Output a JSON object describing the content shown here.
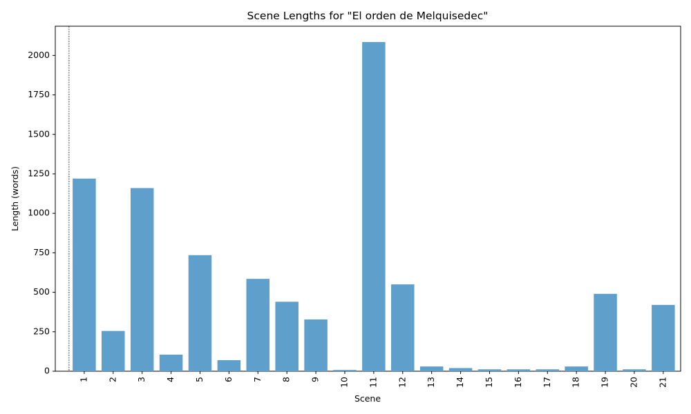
{
  "chart_data": {
    "type": "bar",
    "title": "Scene Lengths for \"El orden de Melquisedec\"",
    "xlabel": "Scene",
    "ylabel": "Length (words)",
    "categories": [
      "1",
      "2",
      "3",
      "4",
      "5",
      "6",
      "7",
      "8",
      "9",
      "10",
      "11",
      "12",
      "13",
      "14",
      "15",
      "16",
      "17",
      "18",
      "19",
      "20",
      "21"
    ],
    "values": [
      1220,
      255,
      1160,
      105,
      735,
      70,
      585,
      440,
      328,
      8,
      2085,
      550,
      30,
      20,
      12,
      12,
      12,
      30,
      490,
      12,
      420
    ],
    "ylim": [
      0,
      2185
    ],
    "yticks": [
      0,
      250,
      500,
      750,
      1000,
      1250,
      1500,
      1750,
      2000
    ],
    "grid": false,
    "bar_color": "#5f9fcc",
    "vline_at_category_offset": -0.5
  }
}
